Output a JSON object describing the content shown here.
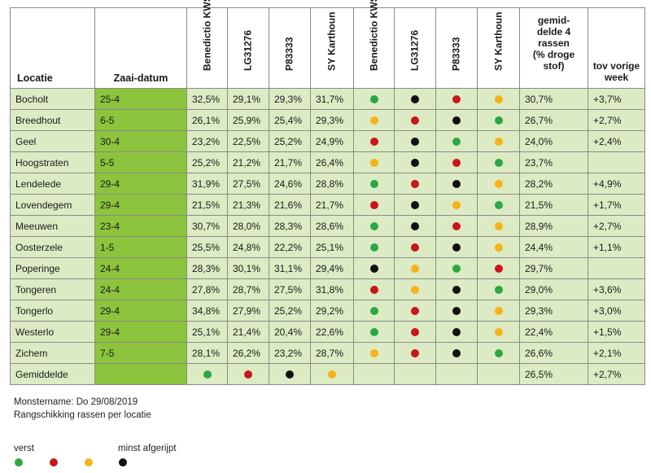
{
  "chart_data": {
    "type": "table",
    "columns": {
      "location": "Locatie",
      "sowing_date": "Zaai-datum",
      "varieties": [
        "Benedictio KWS",
        "LG31276",
        "P83333",
        "SY Karthoun"
      ],
      "average": [
        "gemid-",
        "delde 4",
        "rassen",
        "(% droge",
        "stof)"
      ],
      "prev_week": [
        "tov vorige",
        "week"
      ]
    },
    "rows": [
      {
        "loc": "Bocholt",
        "date": "25-4",
        "vals": [
          "32,5%",
          "29,1%",
          "29,3%",
          "31,7%"
        ],
        "ranks": [
          "green",
          "black",
          "red",
          "yellow"
        ],
        "avg": "30,7%",
        "delta": "+3,7%"
      },
      {
        "loc": "Breedhout",
        "date": "6-5",
        "vals": [
          "26,1%",
          "25,9%",
          "25,4%",
          "29,3%"
        ],
        "ranks": [
          "yellow",
          "red",
          "black",
          "green"
        ],
        "avg": "26,7%",
        "delta": "+2,7%"
      },
      {
        "loc": "Geel",
        "date": "30-4",
        "vals": [
          "23,2%",
          "22,5%",
          "25,2%",
          "24,9%"
        ],
        "ranks": [
          "red",
          "black",
          "green",
          "yellow"
        ],
        "avg": "24,0%",
        "delta": "+2,4%"
      },
      {
        "loc": "Hoogstraten",
        "date": "5-5",
        "vals": [
          "25,2%",
          "21,2%",
          "21,7%",
          "26,4%"
        ],
        "ranks": [
          "yellow",
          "black",
          "red",
          "green"
        ],
        "avg": "23,7%",
        "delta": ""
      },
      {
        "loc": "Lendelede",
        "date": "29-4",
        "vals": [
          "31,9%",
          "27,5%",
          "24,6%",
          "28,8%"
        ],
        "ranks": [
          "green",
          "red",
          "black",
          "yellow"
        ],
        "avg": "28,2%",
        "delta": "+4,9%"
      },
      {
        "loc": "Lovendegem",
        "date": "29-4",
        "vals": [
          "21,5%",
          "21,3%",
          "21,6%",
          "21,7%"
        ],
        "ranks": [
          "red",
          "black",
          "yellow",
          "green"
        ],
        "avg": "21,5%",
        "delta": "+1,7%"
      },
      {
        "loc": "Meeuwen",
        "date": "23-4",
        "vals": [
          "30,7%",
          "28,0%",
          "28,3%",
          "28,6%"
        ],
        "ranks": [
          "green",
          "black",
          "red",
          "yellow"
        ],
        "avg": "28,9%",
        "delta": "+2,7%"
      },
      {
        "loc": "Oosterzele",
        "date": "1-5",
        "vals": [
          "25,5%",
          "24,8%",
          "22,2%",
          "25,1%"
        ],
        "ranks": [
          "green",
          "red",
          "black",
          "yellow"
        ],
        "avg": "24,4%",
        "delta": "+1,1%"
      },
      {
        "loc": "Poperinge",
        "date": "24-4",
        "vals": [
          "28,3%",
          "30,1%",
          "31,1%",
          "29,4%"
        ],
        "ranks": [
          "black",
          "yellow",
          "green",
          "red"
        ],
        "avg": "29,7%",
        "delta": ""
      },
      {
        "loc": "Tongeren",
        "date": "24-4",
        "vals": [
          "27,8%",
          "28,7%",
          "27,5%",
          "31,8%"
        ],
        "ranks": [
          "red",
          "yellow",
          "black",
          "green"
        ],
        "avg": "29,0%",
        "delta": "+3,6%"
      },
      {
        "loc": "Tongerlo",
        "date": "29-4",
        "vals": [
          "34,8%",
          "27,9%",
          "25,2%",
          "29,2%"
        ],
        "ranks": [
          "green",
          "red",
          "black",
          "yellow"
        ],
        "avg": "29,3%",
        "delta": "+3,0%"
      },
      {
        "loc": "Westerlo",
        "date": "29-4",
        "vals": [
          "25,1%",
          "21,4%",
          "20,4%",
          "22,6%"
        ],
        "ranks": [
          "green",
          "red",
          "black",
          "yellow"
        ],
        "avg": "22,4%",
        "delta": "+1,5%"
      },
      {
        "loc": "Zichem",
        "date": "7-5",
        "vals": [
          "28,1%",
          "26,2%",
          "23,2%",
          "28,7%"
        ],
        "ranks": [
          "yellow",
          "red",
          "black",
          "green"
        ],
        "avg": "26,6%",
        "delta": "+2,1%"
      }
    ],
    "average_row": {
      "label": "Gemiddelde",
      "ranks": [
        "green",
        "red",
        "black",
        "yellow"
      ],
      "avg": "26,5%",
      "delta": "+2,7%"
    }
  },
  "footnote": {
    "line1": "Monstername: Do 29/08/2019",
    "line2": "Rangschikking rassen per locatie"
  },
  "legend": {
    "first": "verst",
    "last": "minst afgerijpt"
  },
  "colors": {
    "green": "#2aa843",
    "red": "#c8161d",
    "yellow": "#f5b21a",
    "black": "#111111",
    "date_bg": "#8cc43d",
    "row_bg": "#dcebc3"
  }
}
